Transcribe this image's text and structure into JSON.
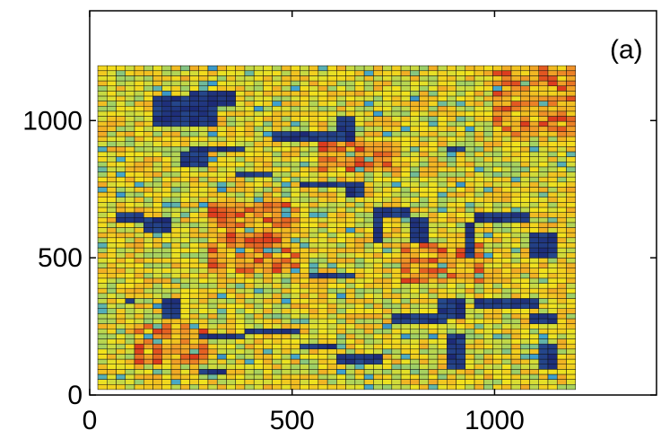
{
  "chart_data": {
    "type": "heatmap",
    "title": "",
    "xlabel": "",
    "ylabel": "",
    "panel_label": "(a)",
    "xlim": [
      0,
      1400
    ],
    "ylim": [
      0,
      1400
    ],
    "xticks": [
      0,
      500,
      1000
    ],
    "yticks": [
      0,
      500,
      1000
    ],
    "xtick_labels": [
      "0",
      "500",
      "1000"
    ],
    "ytick_labels": [
      "0",
      "500",
      "1000"
    ],
    "grid": false,
    "colormap": "jet",
    "colors": {
      "low": "#1a1f6e",
      "mid_low": "#3fa3cf",
      "mid": "#9bcf6a",
      "mid_high": "#f2e31c",
      "high": "#e8541e",
      "cell_border": "#111111",
      "axes": "#000000"
    },
    "grid_cells": {
      "x_start": 20,
      "x_end": 1200,
      "y_start": 20,
      "y_end": 1200,
      "nx": 52,
      "ny": 64,
      "background_level": 0.62
    },
    "dark_streaks": [
      {
        "x": [
          150,
          310
        ],
        "y": [
          980,
          1090
        ]
      },
      {
        "x": [
          250,
          360
        ],
        "y": [
          1050,
          1110
        ]
      },
      {
        "x": [
          240,
          390
        ],
        "y": [
          890,
          910
        ]
      },
      {
        "x": [
          230,
          300
        ],
        "y": [
          830,
          880
        ]
      },
      {
        "x": [
          350,
          460
        ],
        "y": [
          800,
          820
        ]
      },
      {
        "x": [
          460,
          640
        ],
        "y": [
          930,
          960
        ]
      },
      {
        "x": [
          620,
          660
        ],
        "y": [
          930,
          1020
        ]
      },
      {
        "x": [
          510,
          650
        ],
        "y": [
          760,
          780
        ]
      },
      {
        "x": [
          640,
          680
        ],
        "y": [
          720,
          770
        ]
      },
      {
        "x": [
          60,
          140
        ],
        "y": [
          620,
          660
        ]
      },
      {
        "x": [
          140,
          200
        ],
        "y": [
          600,
          640
        ]
      },
      {
        "x": [
          700,
          800
        ],
        "y": [
          650,
          680
        ]
      },
      {
        "x": [
          700,
          730
        ],
        "y": [
          560,
          650
        ]
      },
      {
        "x": [
          800,
          830
        ],
        "y": [
          560,
          640
        ]
      },
      {
        "x": [
          880,
          930
        ],
        "y": [
          880,
          900
        ]
      },
      {
        "x": [
          940,
          1080
        ],
        "y": [
          630,
          660
        ]
      },
      {
        "x": [
          930,
          960
        ],
        "y": [
          500,
          630
        ]
      },
      {
        "x": [
          1080,
          1150
        ],
        "y": [
          500,
          600
        ]
      },
      {
        "x": [
          180,
          220
        ],
        "y": [
          280,
          360
        ]
      },
      {
        "x": [
          260,
          380
        ],
        "y": [
          200,
          220
        ]
      },
      {
        "x": [
          380,
          520
        ],
        "y": [
          220,
          240
        ]
      },
      {
        "x": [
          520,
          620
        ],
        "y": [
          160,
          180
        ]
      },
      {
        "x": [
          620,
          720
        ],
        "y": [
          120,
          140
        ]
      },
      {
        "x": [
          740,
          880
        ],
        "y": [
          260,
          300
        ]
      },
      {
        "x": [
          860,
          920
        ],
        "y": [
          280,
          360
        ]
      },
      {
        "x": [
          880,
          920
        ],
        "y": [
          100,
          220
        ]
      },
      {
        "x": [
          950,
          1120
        ],
        "y": [
          320,
          360
        ]
      },
      {
        "x": [
          1080,
          1150
        ],
        "y": [
          260,
          300
        ]
      },
      {
        "x": [
          1100,
          1150
        ],
        "y": [
          100,
          180
        ]
      },
      {
        "x": [
          270,
          340
        ],
        "y": [
          80,
          100
        ]
      },
      {
        "x": [
          550,
          650
        ],
        "y": [
          420,
          440
        ]
      },
      {
        "x": [
          80,
          110
        ],
        "y": [
          340,
          360
        ]
      }
    ],
    "warm_zones": [
      {
        "x": [
          1000,
          1200
        ],
        "y": [
          950,
          1200
        ]
      },
      {
        "x": [
          120,
          300
        ],
        "y": [
          120,
          260
        ]
      },
      {
        "x": [
          300,
          520
        ],
        "y": [
          450,
          700
        ]
      },
      {
        "x": [
          780,
          980
        ],
        "y": [
          400,
          560
        ]
      },
      {
        "x": [
          560,
          760
        ],
        "y": [
          820,
          920
        ]
      }
    ]
  }
}
